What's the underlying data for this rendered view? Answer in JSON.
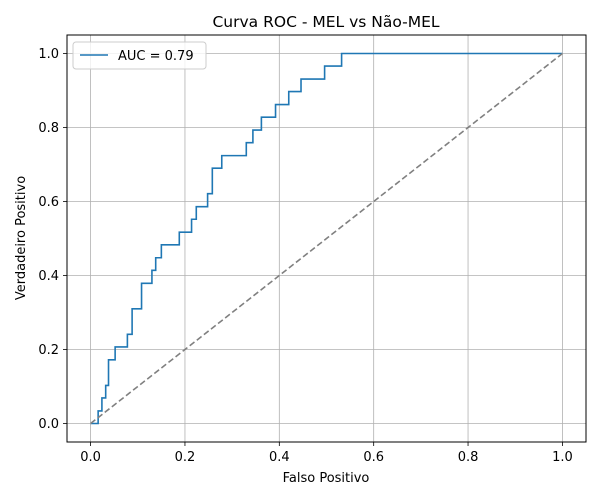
{
  "chart_data": {
    "type": "line",
    "title": "Curva ROC - MEL vs Não-MEL",
    "xlabel": "Falso Positivo",
    "ylabel": "Verdadeiro Positivo",
    "xlim": [
      -0.05,
      1.05
    ],
    "ylim": [
      -0.05,
      1.05
    ],
    "xticks": [
      0.0,
      0.2,
      0.4,
      0.6,
      0.8,
      1.0
    ],
    "yticks": [
      0.0,
      0.2,
      0.4,
      0.6,
      0.8,
      1.0
    ],
    "xtick_labels": [
      "0.0",
      "0.2",
      "0.4",
      "0.6",
      "0.8",
      "1.0"
    ],
    "ytick_labels": [
      "0.0",
      "0.2",
      "0.4",
      "0.6",
      "0.8",
      "1.0"
    ],
    "grid": true,
    "legend_placement": "upper-left",
    "series": [
      {
        "name": "AUC = 0.79",
        "color": "#1f77b4",
        "style": "solid",
        "x": [
          0.0,
          0.016,
          0.016,
          0.024,
          0.024,
          0.032,
          0.032,
          0.038,
          0.038,
          0.052,
          0.052,
          0.078,
          0.078,
          0.088,
          0.088,
          0.108,
          0.108,
          0.13,
          0.13,
          0.138,
          0.138,
          0.15,
          0.15,
          0.188,
          0.188,
          0.214,
          0.214,
          0.224,
          0.224,
          0.248,
          0.248,
          0.258,
          0.258,
          0.278,
          0.278,
          0.33,
          0.33,
          0.344,
          0.344,
          0.362,
          0.362,
          0.392,
          0.392,
          0.42,
          0.42,
          0.446,
          0.446,
          0.496,
          0.496,
          0.532,
          0.532,
          1.0
        ],
        "y": [
          0.0,
          0.0,
          0.034,
          0.034,
          0.069,
          0.069,
          0.103,
          0.103,
          0.172,
          0.172,
          0.207,
          0.207,
          0.241,
          0.241,
          0.31,
          0.31,
          0.379,
          0.379,
          0.414,
          0.414,
          0.448,
          0.448,
          0.483,
          0.483,
          0.517,
          0.517,
          0.552,
          0.552,
          0.586,
          0.586,
          0.621,
          0.621,
          0.69,
          0.69,
          0.724,
          0.724,
          0.759,
          0.759,
          0.793,
          0.793,
          0.828,
          0.828,
          0.862,
          0.862,
          0.897,
          0.897,
          0.931,
          0.931,
          0.966,
          0.966,
          1.0,
          1.0
        ]
      },
      {
        "color": "#808080",
        "style": "dashed",
        "x": [
          0.0,
          1.0
        ],
        "y": [
          0.0,
          1.0
        ]
      }
    ]
  }
}
